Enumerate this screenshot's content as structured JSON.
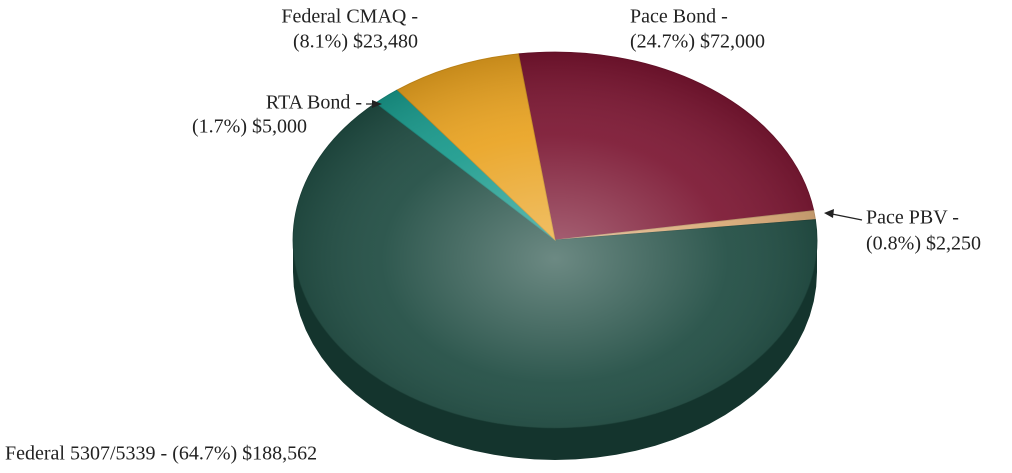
{
  "chart_data": {
    "type": "pie",
    "categories": [
      "Pace Bond -",
      "Pace PBV -",
      "Federal 5307/5339 -",
      "RTA Bond -",
      "Federal CMAQ -"
    ],
    "values": [
      72000,
      2250,
      188562,
      5000,
      23480
    ],
    "value_labels": [
      "(24.7%) $72,000",
      "(0.8%) $2,250",
      "(64.7%) $188,562",
      "(1.7%) $5,000",
      "(8.1%) $23,480"
    ],
    "colors": [
      "#7a1430",
      "#d8a874",
      "#1d4a40",
      "#17998b",
      "#e9a21f"
    ]
  }
}
